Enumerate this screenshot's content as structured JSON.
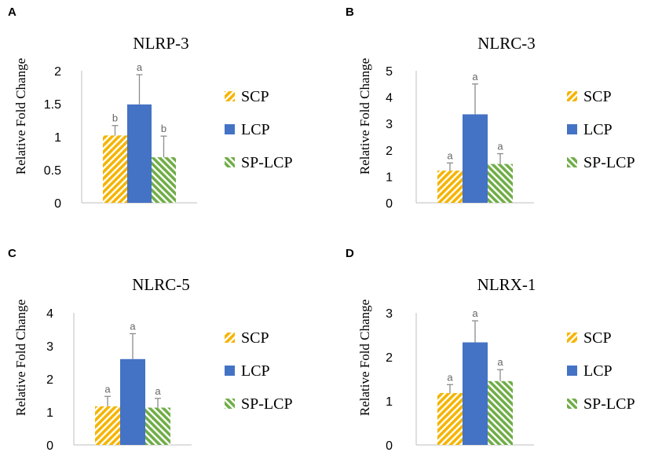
{
  "colors": {
    "SCP": "#f5b400",
    "LCP": "#4472c4",
    "SP-LCP": "#70ad47",
    "error_bar": "#8c8c8c",
    "axis": "#bfbfbf"
  },
  "legend": [
    "SCP",
    "LCP",
    "SP-LCP"
  ],
  "chart_data": [
    {
      "panel": "A",
      "type": "bar",
      "title": "NLRP-3",
      "ylabel": "Relative Fold Change",
      "xlabel": "",
      "ylim": [
        0,
        2
      ],
      "yticks": [
        "0",
        "0.5",
        "1",
        "1.5",
        "2"
      ],
      "categories": [
        "SCP",
        "LCP",
        "SP-LCP"
      ],
      "values": [
        1.02,
        1.49,
        0.69
      ],
      "errors": [
        0.15,
        0.45,
        0.32
      ],
      "letters": [
        "b",
        "a",
        "b"
      ]
    },
    {
      "panel": "B",
      "type": "bar",
      "title": "NLRC-3",
      "ylabel": "Relative Fold Change",
      "xlabel": "",
      "ylim": [
        0,
        5
      ],
      "yticks": [
        "0",
        "1",
        "2",
        "3",
        "4",
        "5"
      ],
      "categories": [
        "SCP",
        "LCP",
        "SP-LCP"
      ],
      "values": [
        1.22,
        3.35,
        1.47
      ],
      "errors": [
        0.29,
        1.15,
        0.39
      ],
      "letters": [
        "a",
        "a",
        "a"
      ]
    },
    {
      "panel": "C",
      "type": "bar",
      "title": "NLRC-5",
      "ylabel": "Relative Fold Change",
      "xlabel": "",
      "ylim": [
        0,
        4
      ],
      "yticks": [
        "0",
        "1",
        "2",
        "3",
        "4"
      ],
      "categories": [
        "SCP",
        "LCP",
        "SP-LCP"
      ],
      "values": [
        1.17,
        2.6,
        1.13
      ],
      "errors": [
        0.3,
        0.77,
        0.28
      ],
      "letters": [
        "a",
        "a",
        "a"
      ]
    },
    {
      "panel": "D",
      "type": "bar",
      "title": "NLRX-1",
      "ylabel": "Relative Fold Change",
      "xlabel": "",
      "ylim": [
        0,
        3
      ],
      "yticks": [
        "0",
        "1",
        "2",
        "3"
      ],
      "categories": [
        "SCP",
        "LCP",
        "SP-LCP"
      ],
      "values": [
        1.18,
        2.33,
        1.45
      ],
      "errors": [
        0.19,
        0.49,
        0.26
      ],
      "letters": [
        "a",
        "a",
        "a"
      ]
    }
  ]
}
